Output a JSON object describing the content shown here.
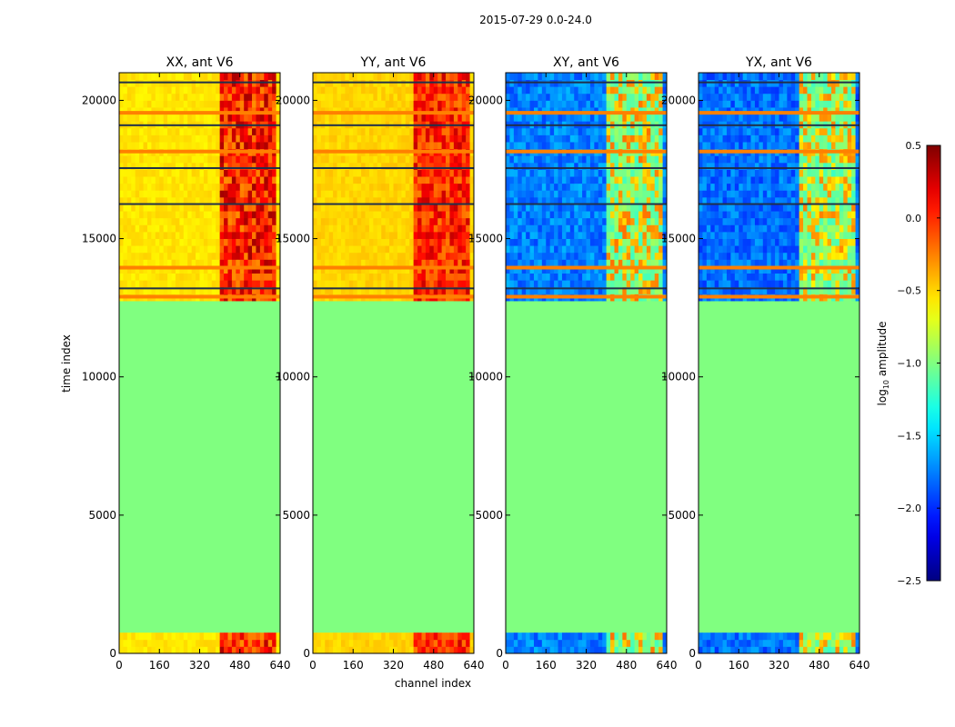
{
  "chart_data": {
    "type": "heatmap",
    "suptitle": "2015-07-29 0.0-24.0",
    "xlabel": "channel index",
    "ylabel": "time index",
    "xlim": [
      0,
      640
    ],
    "ylim": [
      0,
      21000
    ],
    "xticks": [
      0,
      160,
      320,
      480,
      640
    ],
    "yticks": [
      0,
      5000,
      10000,
      15000,
      20000
    ],
    "colorbar": {
      "label": "log",
      "label_sub": "10",
      "label_suffix": " amplitude",
      "min": -2.5,
      "max": 0.5,
      "ticks": [
        -2.5,
        -2.0,
        -1.5,
        -1.0,
        -0.5,
        0.0,
        0.5
      ],
      "tick_labels": [
        "−2.5",
        "−2.0",
        "−1.5",
        "−1.0",
        "−0.5",
        "0.0",
        "0.5"
      ],
      "colormap": "jet"
    },
    "fill_value": -1.0,
    "panels": [
      {
        "title": "XX, ant V6",
        "kind": "auto",
        "base": -0.55,
        "peak": 0.15
      },
      {
        "title": "YY, ant V6",
        "kind": "auto",
        "base": -0.5,
        "peak": 0.05
      },
      {
        "title": "XY, ant V6",
        "kind": "cross",
        "base": -1.75,
        "peak": -0.2
      },
      {
        "title": "YX, ant V6",
        "kind": "cross",
        "base": -1.8,
        "peak": -0.25
      }
    ],
    "data_segments": [
      [
        0,
        750
      ],
      [
        12850,
        15150
      ],
      [
        15250,
        21000
      ]
    ],
    "strong_lines": [
      12900,
      13950,
      18150,
      19550
    ],
    "dark_lines": [
      13200,
      16250,
      17550,
      19100,
      20650
    ]
  }
}
